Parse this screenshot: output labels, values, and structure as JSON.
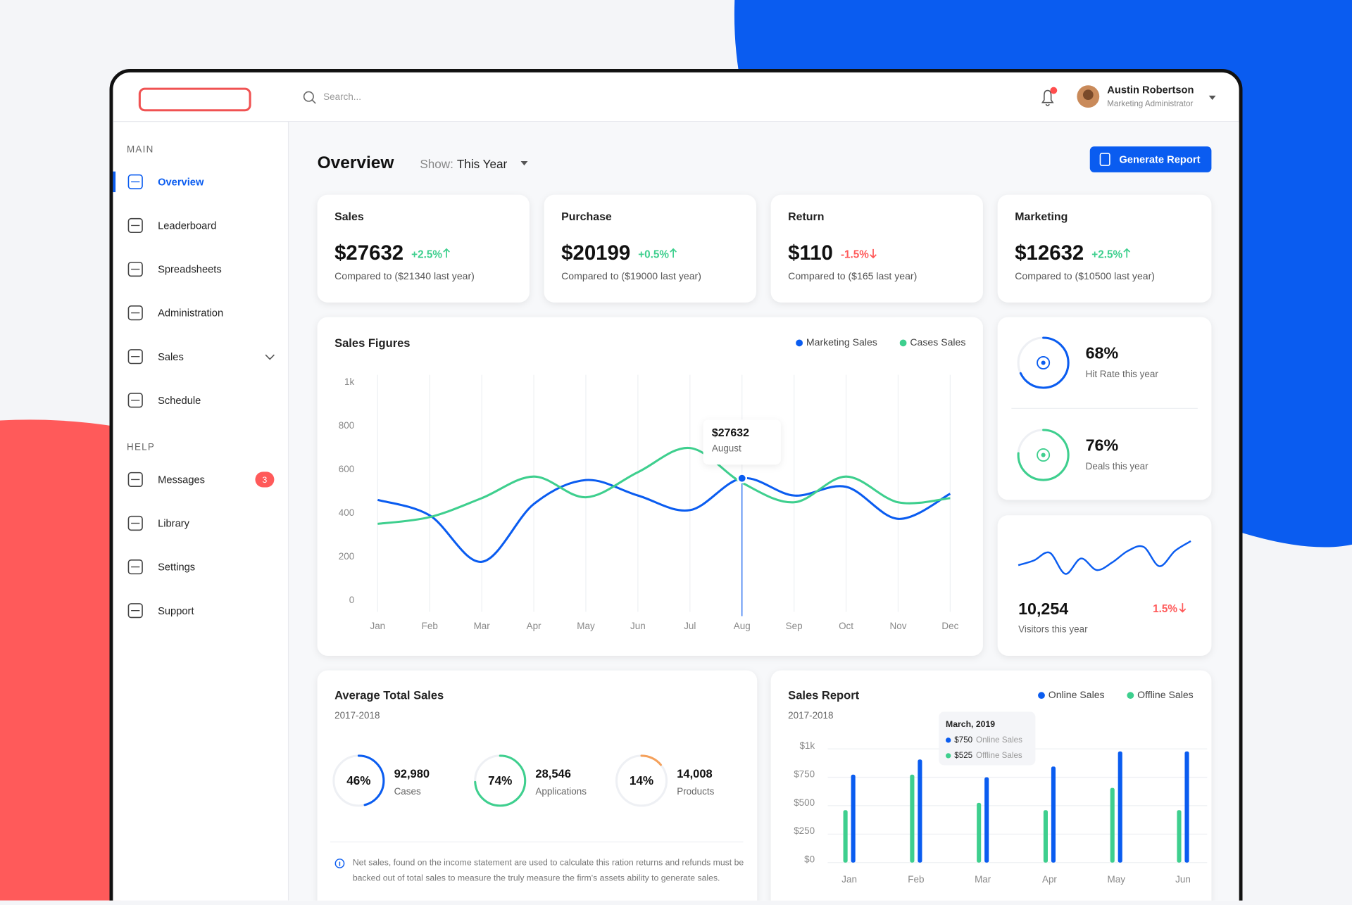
{
  "header": {
    "search_placeholder": "Search...",
    "user_name": "Austin Robertson",
    "user_role": "Marketing Administrator"
  },
  "sidebar": {
    "sections": [
      {
        "title": "MAIN",
        "items": [
          {
            "label": "Overview",
            "active": true
          },
          {
            "label": "Leaderboard"
          },
          {
            "label": "Spreadsheets"
          },
          {
            "label": "Administration"
          },
          {
            "label": "Sales",
            "expandable": true
          },
          {
            "label": "Schedule"
          }
        ]
      },
      {
        "title": "HELP",
        "items": [
          {
            "label": "Messages",
            "badge": 3
          },
          {
            "label": "Library"
          },
          {
            "label": "Settings"
          },
          {
            "label": "Support"
          }
        ]
      }
    ]
  },
  "page": {
    "title": "Overview",
    "show_label": "Show:",
    "show_value": "This Year",
    "button": "Generate Report"
  },
  "stat_cards": [
    {
      "title": "Sales",
      "value": "$27632",
      "change": "+2.5%",
      "trend": "up",
      "comparison": "Compared to ($21340 last year)"
    },
    {
      "title": "Purchase",
      "value": "$20199",
      "change": "+0.5%",
      "trend": "up",
      "comparison": "Compared to ($19000 last year)"
    },
    {
      "title": "Return",
      "value": "$110",
      "change": "-1.5%",
      "trend": "down",
      "comparison": "Compared to ($165 last year)"
    },
    {
      "title": "Marketing",
      "value": "$12632",
      "change": "+2.5%",
      "trend": "up",
      "comparison": "Compared to ($10500 last year)"
    }
  ],
  "chart_data": [
    {
      "type": "line",
      "title": "Sales Figures",
      "categories": [
        "Jan",
        "Feb",
        "Mar",
        "Apr",
        "May",
        "Jun",
        "Jul",
        "Aug",
        "Sep",
        "Oct",
        "Nov",
        "Dec"
      ],
      "series": [
        {
          "name": "Marketing Sales",
          "color": "#0a5cf0",
          "values": [
            462,
            391,
            178,
            443,
            553,
            482,
            415,
            561,
            482,
            522,
            375,
            490
          ]
        },
        {
          "name": "Cases Sales",
          "color": "#3ecf8e",
          "values": [
            352,
            383,
            470,
            569,
            474,
            589,
            700,
            541,
            451,
            569,
            451,
            470
          ]
        }
      ],
      "ylim": [
        0,
        1000
      ],
      "yticks": [
        0,
        200,
        400,
        600,
        800,
        {
          "value": 1000,
          "label": "1k"
        }
      ],
      "grid": true,
      "legend": "top-right",
      "annotation": {
        "category": "Aug",
        "value_label": "$27632",
        "caption": "August"
      }
    },
    {
      "type": "bar",
      "title": "Sales Report",
      "subtitle": "2017-2018",
      "categories": [
        "Jan",
        "Feb",
        "Mar",
        "Apr",
        "May",
        "Jun"
      ],
      "series": [
        {
          "name": "Online Sales",
          "color": "#0a5cf0",
          "values": [
            773,
            906,
            750,
            844,
            977,
            977
          ]
        },
        {
          "name": "Offline Sales",
          "color": "#3ecf8e",
          "values": [
            461,
            773,
            525,
            461,
            656,
            461
          ]
        }
      ],
      "ylim": [
        0,
        1000
      ],
      "yticks": [
        {
          "value": 0,
          "label": "$0"
        },
        {
          "value": 250,
          "label": "$250"
        },
        {
          "value": 500,
          "label": "$500"
        },
        {
          "value": 750,
          "label": "$750"
        },
        {
          "value": 1000,
          "label": "$1k"
        }
      ],
      "grid": true,
      "legend": "top-right",
      "annotation": {
        "category": "Mar",
        "title": "March, 2019",
        "value_labels": [
          "$750",
          "$525"
        ]
      }
    }
  ],
  "goals": [
    {
      "percent": 68,
      "label": "68%",
      "caption": "Hit Rate this year",
      "color": "#0a5cf0"
    },
    {
      "percent": 76,
      "label": "76%",
      "caption": "Deals this year",
      "color": "#3ecf8e"
    }
  ],
  "visitors": {
    "value": "10,254",
    "change": "1.5%",
    "trend": "down",
    "caption": "Visitors this year",
    "color": "#0a5cf0",
    "trend_values": [
      25,
      30,
      38,
      16,
      32,
      20,
      28,
      40,
      44,
      24,
      40,
      50
    ]
  },
  "average_total_sales": {
    "title": "Average Total Sales",
    "subtitle": "2017-2018",
    "items": [
      {
        "percent": 46,
        "percent_label": "46%",
        "value": "92,980",
        "label": "Cases",
        "color": "#0a5cf0"
      },
      {
        "percent": 74,
        "percent_label": "74%",
        "value": "28,546",
        "label": "Applications",
        "color": "#3ecf8e"
      },
      {
        "percent": 14,
        "percent_label": "14%",
        "value": "14,008",
        "label": "Products",
        "color": "#f5a05a"
      }
    ],
    "note": "Net sales, found on the income statement are used to calculate this ration returns and refunds must be backed out of total sales to measure the truly measure the firm's assets ability to generate sales."
  }
}
